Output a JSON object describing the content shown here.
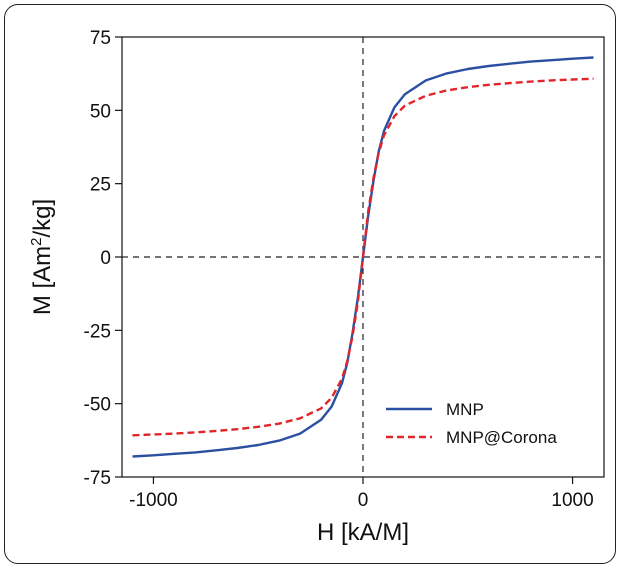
{
  "chart_data": {
    "type": "line",
    "xlabel": "H [kA/M]",
    "ylabel_main": "M [Am",
    "ylabel_sup": "2",
    "ylabel_tail": "/kg]",
    "xlim": [
      -1150,
      1150
    ],
    "ylim": [
      -75,
      75
    ],
    "xticks": [
      -1000,
      0,
      1000
    ],
    "yticks": [
      75,
      50,
      25,
      0,
      -25,
      -50,
      -75
    ],
    "x_tick_labels": [
      "-1000",
      "0",
      "1000"
    ],
    "y_tick_labels": [
      "75",
      "50",
      "25",
      "0",
      "-25",
      "-50",
      "-75"
    ],
    "reference_lines": {
      "x": 0,
      "y": 0,
      "style": "dashed"
    },
    "legend_position": "bottom-right",
    "series": [
      {
        "name": "MNP",
        "color": "#2b4fa1",
        "style": "solid",
        "points": [
          [
            -1100,
            -68
          ],
          [
            -1000,
            -67.6
          ],
          [
            -900,
            -67.1
          ],
          [
            -800,
            -66.6
          ],
          [
            -700,
            -65.9
          ],
          [
            -600,
            -65.1
          ],
          [
            -500,
            -64.1
          ],
          [
            -400,
            -62.6
          ],
          [
            -300,
            -60.2
          ],
          [
            -200,
            -55.5
          ],
          [
            -150,
            -51
          ],
          [
            -100,
            -43
          ],
          [
            -75,
            -36
          ],
          [
            -50,
            -26
          ],
          [
            -25,
            -14
          ],
          [
            0,
            0
          ],
          [
            25,
            14
          ],
          [
            50,
            26
          ],
          [
            75,
            36
          ],
          [
            100,
            43
          ],
          [
            150,
            51
          ],
          [
            200,
            55.5
          ],
          [
            300,
            60.2
          ],
          [
            400,
            62.6
          ],
          [
            500,
            64.1
          ],
          [
            600,
            65.1
          ],
          [
            700,
            65.9
          ],
          [
            800,
            66.6
          ],
          [
            900,
            67.1
          ],
          [
            1000,
            67.6
          ],
          [
            1100,
            68
          ]
        ]
      },
      {
        "name": "MNP@Corona",
        "color": "#e0262b",
        "style": "dashed",
        "points": [
          [
            -1100,
            -60.8
          ],
          [
            -1000,
            -60.5
          ],
          [
            -900,
            -60.2
          ],
          [
            -800,
            -59.8
          ],
          [
            -700,
            -59.3
          ],
          [
            -600,
            -58.7
          ],
          [
            -500,
            -57.9
          ],
          [
            -400,
            -56.8
          ],
          [
            -300,
            -55
          ],
          [
            -200,
            -51.6
          ],
          [
            -150,
            -48
          ],
          [
            -100,
            -41.5
          ],
          [
            -75,
            -35.5
          ],
          [
            -50,
            -27
          ],
          [
            -25,
            -15.5
          ],
          [
            0,
            0
          ],
          [
            25,
            15.5
          ],
          [
            50,
            27
          ],
          [
            75,
            35.5
          ],
          [
            100,
            41.5
          ],
          [
            150,
            48
          ],
          [
            200,
            51.6
          ],
          [
            300,
            55
          ],
          [
            400,
            56.8
          ],
          [
            500,
            57.9
          ],
          [
            600,
            58.7
          ],
          [
            700,
            59.3
          ],
          [
            800,
            59.8
          ],
          [
            900,
            60.2
          ],
          [
            1000,
            60.5
          ],
          [
            1100,
            60.8
          ]
        ]
      }
    ]
  }
}
